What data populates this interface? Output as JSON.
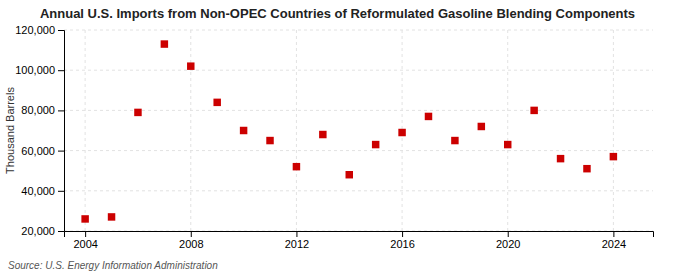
{
  "chart_data": {
    "type": "scatter",
    "title": "Annual U.S. Imports from Non-OPEC Countries of Reformulated Gasoline Blending Components",
    "y_label": "Thousand Barrels",
    "annotation": "Source: U.S. Energy Information Administration",
    "x": [
      2004,
      2005,
      2006,
      2007,
      2008,
      2009,
      2010,
      2011,
      2012,
      2013,
      2014,
      2015,
      2016,
      2017,
      2018,
      2019,
      2020,
      2021,
      2022,
      2023,
      2024
    ],
    "values": [
      26000,
      27000,
      79000,
      113000,
      102000,
      84000,
      70000,
      65000,
      52000,
      68000,
      48000,
      63000,
      69000,
      77000,
      65000,
      72000,
      63000,
      80000,
      56000,
      51000,
      57000
    ],
    "color": "#cc0000",
    "marker": "square",
    "xlim": [
      2003.2,
      2025.5
    ],
    "xticks": [
      2004,
      2008,
      2012,
      2016,
      2020,
      2024
    ],
    "ylim": [
      20000,
      120000
    ],
    "yticks": [
      {
        "value": 20000,
        "label": "20,000"
      },
      {
        "value": 40000,
        "label": "40,000"
      },
      {
        "value": 60000,
        "label": "60,000"
      },
      {
        "value": 80000,
        "label": "80,000"
      },
      {
        "value": 100000,
        "label": "100,000"
      },
      {
        "value": 120000,
        "label": "120,000"
      }
    ],
    "grid": true
  }
}
